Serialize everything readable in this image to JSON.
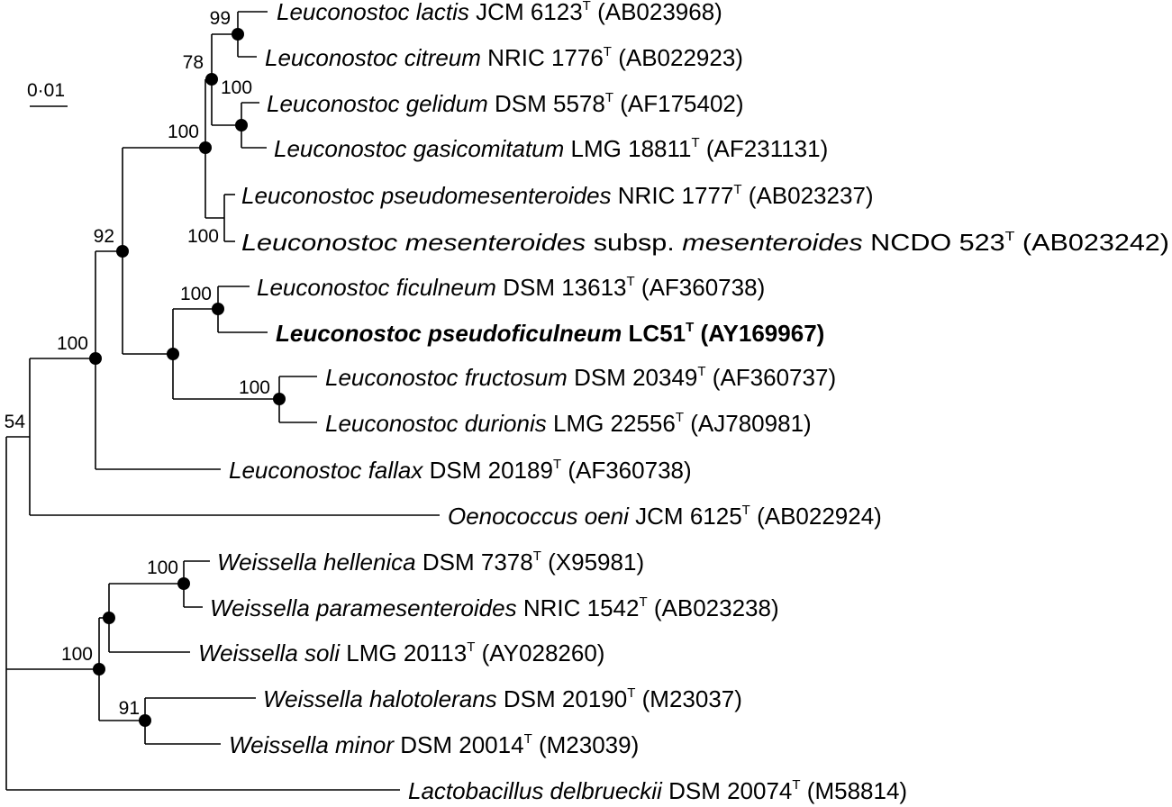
{
  "scale_bar": {
    "label": "0·01"
  },
  "leaves": [
    {
      "name": "Leuconostoc lactis",
      "genus": "Leuconostoc",
      "epithet": "lactis",
      "strain": "JCM 6123",
      "type_mark": "T",
      "accession": "(AB023968)"
    },
    {
      "name": "Leuconostoc citreum",
      "genus": "Leuconostoc",
      "epithet": "citreum",
      "strain": "NRIC 1776",
      "type_mark": "T",
      "accession": "(AB022923)"
    },
    {
      "name": "Leuconostoc gelidum",
      "genus": "Leuconostoc",
      "epithet": "gelidum",
      "strain": "DSM 5578",
      "type_mark": "T",
      "accession": "(AF175402)"
    },
    {
      "name": "Leuconostoc gasicomitatum",
      "genus": "Leuconostoc",
      "epithet": "gasicomitatum",
      "strain": "LMG 18811",
      "type_mark": "T",
      "accession": "(AF231131)"
    },
    {
      "name": "Leuconostoc pseudomesenteroides",
      "genus": "Leuconostoc",
      "epithet": "pseudomesenteroides",
      "strain": "NRIC 1777",
      "type_mark": "T",
      "accession": "(AB023237)"
    },
    {
      "name": "Leuconostoc mesenteroides subsp. mesenteroides",
      "genus": "Leuconostoc",
      "epithet": "mesenteroides",
      "subsp_word": "subsp.",
      "subsp_name": "mesenteroides",
      "strain": "NCDO 523",
      "type_mark": "T",
      "accession": "(AB023242)"
    },
    {
      "name": "Leuconostoc ficulneum",
      "genus": "Leuconostoc",
      "epithet": "ficulneum",
      "strain": "DSM 13613",
      "type_mark": "T",
      "accession": "(AF360738)"
    },
    {
      "name": "Leuconostoc pseudoficulneum",
      "genus": "Leuconostoc",
      "epithet": "pseudoficulneum",
      "strain": "LC51",
      "type_mark": "T",
      "accession": "(AY169967)",
      "highlight": true
    },
    {
      "name": "Leuconostoc fructosum",
      "genus": "Leuconostoc",
      "epithet": "fructosum",
      "strain": "DSM 20349",
      "type_mark": "T",
      "accession": "(AF360737)"
    },
    {
      "name": "Leuconostoc durionis",
      "genus": "Leuconostoc",
      "epithet": "durionis",
      "strain": "LMG 22556",
      "type_mark": "T",
      "accession": "(AJ780981)"
    },
    {
      "name": "Leuconostoc fallax",
      "genus": "Leuconostoc",
      "epithet": "fallax",
      "strain": "DSM 20189",
      "type_mark": "T",
      "accession": "(AF360738)"
    },
    {
      "name": "Oenococcus oeni",
      "genus": "Oenococcus",
      "epithet": "oeni",
      "strain": "JCM 6125",
      "type_mark": "T",
      "accession": "(AB022924)"
    },
    {
      "name": "Weissella hellenica",
      "genus": "Weissella",
      "epithet": "hellenica",
      "strain": "DSM 7378",
      "type_mark": "T",
      "accession": "(X95981)"
    },
    {
      "name": "Weissella paramesenteroides",
      "genus": "Weissella",
      "epithet": "paramesenteroides",
      "strain": "NRIC 1542",
      "type_mark": "T",
      "accession": "(AB023238)"
    },
    {
      "name": "Weissella soli",
      "genus": "Weissella",
      "epithet": "soli",
      "strain": "LMG 20113",
      "type_mark": "T",
      "accession": "(AY028260)"
    },
    {
      "name": "Weissella halotolerans",
      "genus": "Weissella",
      "epithet": "halotolerans",
      "strain": "DSM 20190",
      "type_mark": "T",
      "accession": "(M23037)"
    },
    {
      "name": "Weissella minor",
      "genus": "Weissella",
      "epithet": "minor",
      "strain": "DSM 20014",
      "type_mark": "T",
      "accession": "(M23039)"
    },
    {
      "name": "Lactobacillus delbrueckii",
      "genus": "Lactobacillus",
      "epithet": "delbrueckii",
      "strain": "DSM 20074",
      "type_mark": "T",
      "accession": "(M58814)"
    }
  ],
  "bootstrap": {
    "lactis_citreum": "99",
    "lactis_gasicomitatum": "78",
    "gelidum_gasicomitatum": "100",
    "lactis_mesenteroides": "100",
    "pseudomesenteroides_mesenteroides": "100",
    "leuconostoc_core": "92",
    "ficulneum_pseudoficulneum": "100",
    "fructosum_durionis": "100",
    "leuconostoc_all": "100",
    "leuconostoc_oenococcus": "54",
    "weissella_hellenica_paramesenteroides": "100",
    "weissella_all": "100",
    "weissella_halotolerans_minor": "91"
  }
}
